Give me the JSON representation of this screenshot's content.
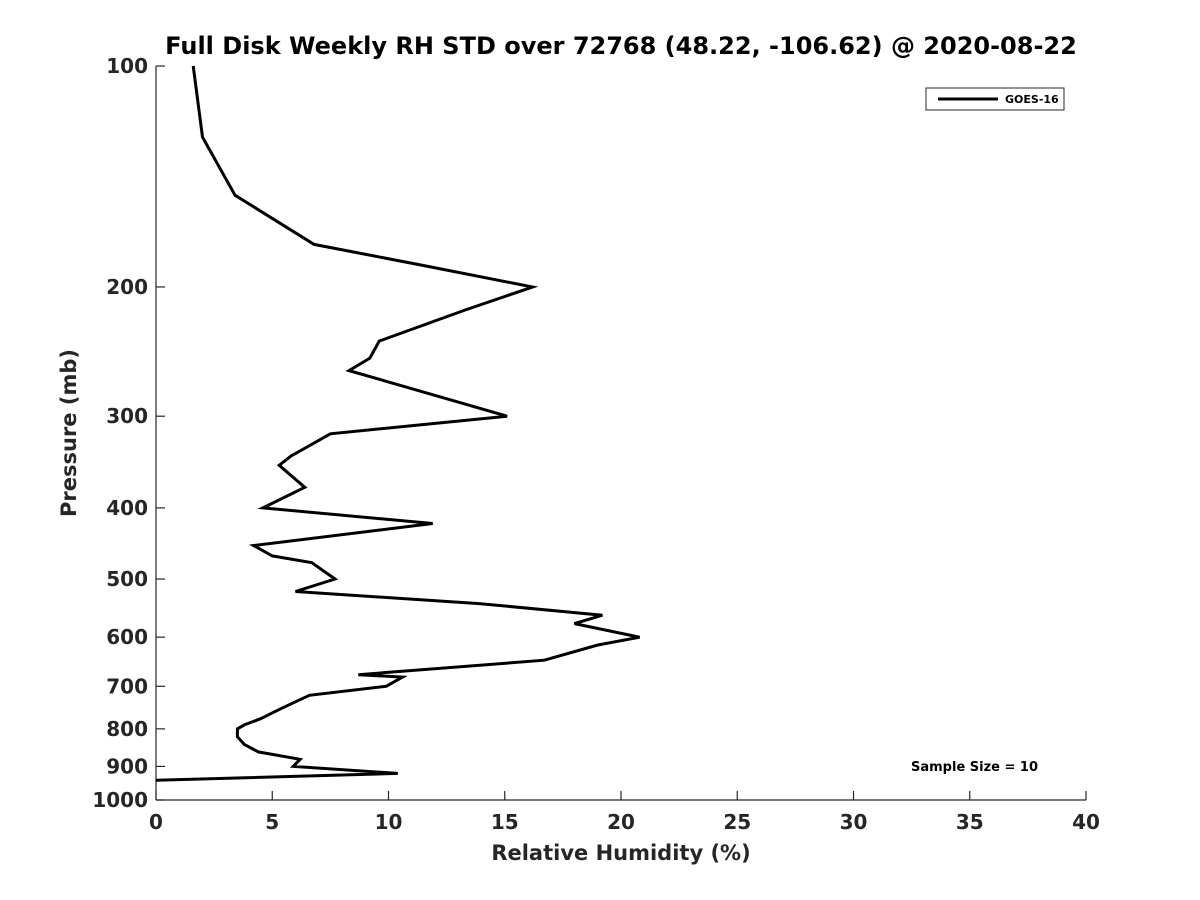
{
  "chart_data": {
    "type": "line",
    "title": "Full Disk Weekly RH STD over 72768 (48.22, -106.62) @ 2020-08-22",
    "xlabel": "Relative Humidity (%)",
    "ylabel": "Pressure (mb)",
    "xlim": [
      0,
      40
    ],
    "ylim": [
      100,
      1000
    ],
    "yscale": "log",
    "y_reversed": true,
    "xticks": [
      0,
      5,
      10,
      15,
      20,
      25,
      30,
      35,
      40
    ],
    "yticks": [
      100,
      200,
      300,
      400,
      500,
      600,
      700,
      800,
      900,
      1000
    ],
    "grid": false,
    "legend_position": "top-right",
    "annotation": "Sample Size = 10",
    "line_color": "#000000",
    "series": [
      {
        "name": "GOES-16",
        "points": [
          [
            1.6,
            100
          ],
          [
            2.0,
            125
          ],
          [
            3.4,
            150
          ],
          [
            6.8,
            175
          ],
          [
            11.5,
            187
          ],
          [
            16.2,
            200
          ],
          [
            13.3,
            215
          ],
          [
            9.6,
            237
          ],
          [
            9.2,
            250
          ],
          [
            8.3,
            260
          ],
          [
            15.1,
            300
          ],
          [
            7.5,
            317
          ],
          [
            5.8,
            340
          ],
          [
            5.3,
            350
          ],
          [
            6.4,
            375
          ],
          [
            4.6,
            400
          ],
          [
            11.9,
            420
          ],
          [
            4.2,
            450
          ],
          [
            5.0,
            465
          ],
          [
            6.7,
            475
          ],
          [
            7.7,
            500
          ],
          [
            6.0,
            520
          ],
          [
            13.9,
            540
          ],
          [
            19.2,
            560
          ],
          [
            18.0,
            575
          ],
          [
            20.8,
            600
          ],
          [
            19.0,
            615
          ],
          [
            16.7,
            645
          ],
          [
            8.7,
            675
          ],
          [
            10.6,
            680
          ],
          [
            9.9,
            700
          ],
          [
            6.6,
            720
          ],
          [
            5.4,
            750
          ],
          [
            4.5,
            775
          ],
          [
            3.8,
            790
          ],
          [
            3.5,
            800
          ],
          [
            3.5,
            820
          ],
          [
            3.8,
            840
          ],
          [
            4.4,
            860
          ],
          [
            6.2,
            880
          ],
          [
            5.9,
            900
          ],
          [
            10.4,
            920
          ],
          [
            0.0,
            940
          ]
        ]
      }
    ]
  }
}
